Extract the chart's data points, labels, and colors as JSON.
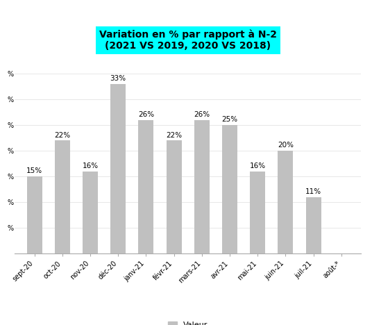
{
  "categories": [
    "sept-20",
    "oct-20",
    "nov-20",
    "déc-20",
    "janv-21",
    "févr-21",
    "mars-21",
    "avr-21",
    "mai-21",
    "juin-21",
    "juil-21",
    "août-*"
  ],
  "values": [
    15,
    22,
    16,
    33,
    26,
    22,
    26,
    25,
    16,
    20,
    11,
    null
  ],
  "bar_color": "#c0c0c0",
  "title_line1": "Variation en % par rapport à N-2",
  "title_line2": "(2021 VS 2019, 2020 VS 2018)",
  "title_bg_color": "#00ffff",
  "title_fontsize": 10,
  "title_fontweight": "bold",
  "label_fontsize": 7.5,
  "tick_fontsize": 7,
  "legend_label": "Valeur",
  "ylim": [
    0,
    38
  ],
  "yticks": [
    0,
    5,
    10,
    15,
    20,
    25,
    30,
    35
  ],
  "background_color": "#ffffff"
}
